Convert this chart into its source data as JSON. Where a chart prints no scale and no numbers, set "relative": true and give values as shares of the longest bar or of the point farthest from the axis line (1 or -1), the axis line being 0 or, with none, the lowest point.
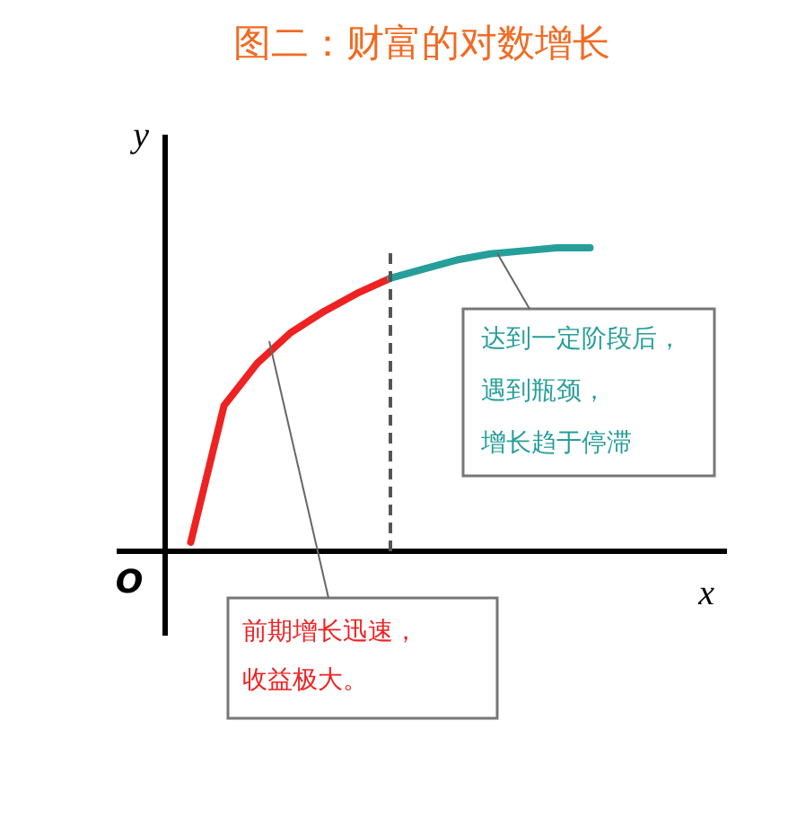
{
  "chart_data": {
    "type": "line",
    "title": "图二：财富的对数增长",
    "xlabel": "x",
    "ylabel": "y",
    "relative": true,
    "categories": [
      null,
      null,
      null,
      null,
      null,
      null,
      null,
      null,
      null,
      null,
      null,
      null,
      null
    ],
    "series": [
      {
        "color": "#ee2222",
        "values": [
          0.03,
          0.48,
          0.62,
          0.72,
          0.79,
          0.85,
          0.9,
          null,
          null,
          null,
          null,
          null,
          null
        ]
      },
      {
        "color": "#269e9a",
        "values": [
          null,
          null,
          null,
          null,
          null,
          null,
          0.9,
          0.93,
          0.96,
          0.98,
          0.99,
          1.0,
          1.0
        ]
      }
    ],
    "ref_lines": [
      {
        "axis": "x",
        "color": "#555555",
        "line_style": "dashed"
      }
    ],
    "annotations": [
      "前期增长迅速，收益极大。",
      "达到一定阶段后，遇到瓶颈，增长趋于停滞",
      "O"
    ]
  }
}
